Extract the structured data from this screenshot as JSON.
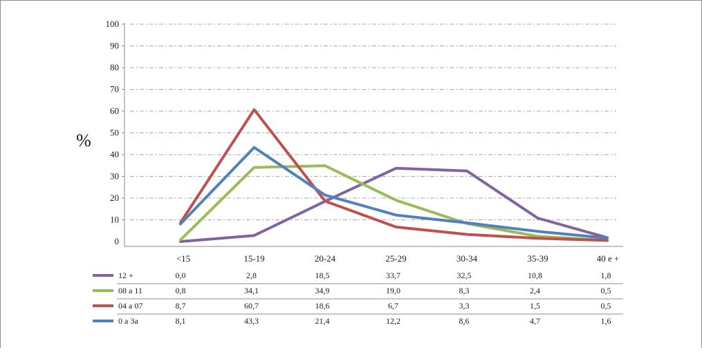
{
  "chart_data": {
    "type": "line",
    "ylabel": "%",
    "xlabel": "",
    "ylim": [
      0,
      100
    ],
    "yticks": [
      0,
      10,
      20,
      30,
      40,
      50,
      60,
      70,
      80,
      90,
      100
    ],
    "grid": "horizontal-dashed",
    "legend": "data-table-below",
    "categories": [
      "<15",
      "15-19",
      "20-24",
      "25-29",
      "30-34",
      "35-39",
      "40 e +"
    ],
    "series": [
      {
        "name": "12 +",
        "color": "#8064a2",
        "values": [
          0.0,
          2.8,
          18.5,
          33.7,
          32.5,
          10.8,
          1.8
        ],
        "labels": [
          "0,0",
          "2,8",
          "18,5",
          "33,7",
          "32,5",
          "10,8",
          "1,8"
        ]
      },
      {
        "name": "08 a 11",
        "color": "#9bbb59",
        "values": [
          0.8,
          34.1,
          34.9,
          19.0,
          8.3,
          2.4,
          0.5
        ],
        "labels": [
          "0,8",
          "34,1",
          "34,9",
          "19,0",
          "8,3",
          "2,4",
          "0,5"
        ]
      },
      {
        "name": "04 a 07",
        "color": "#c0504d",
        "values": [
          8.7,
          60.7,
          18.6,
          6.7,
          3.3,
          1.5,
          0.5
        ],
        "labels": [
          "8,7",
          "60,7",
          "18,6",
          "6,7",
          "3,3",
          "1,5",
          "0,5"
        ]
      },
      {
        "name": "0 a 3a",
        "color": "#4f81bd",
        "values": [
          8.1,
          43.3,
          21.4,
          12.2,
          8.6,
          4.7,
          1.6
        ],
        "labels": [
          "8,1",
          "43,3",
          "21,4",
          "12,2",
          "8,6",
          "4,7",
          "1,6"
        ]
      }
    ]
  }
}
